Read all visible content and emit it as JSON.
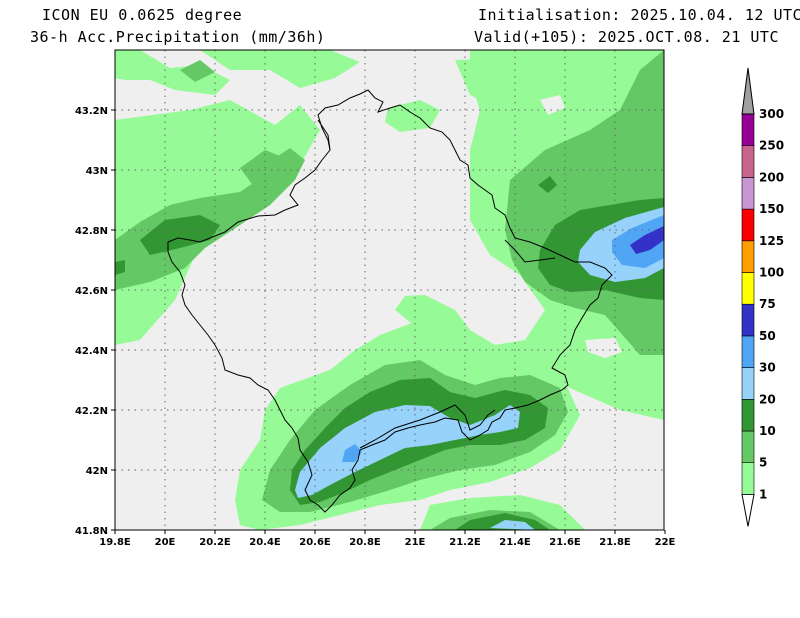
{
  "header": {
    "model": "ICON EU 0.0625 degree",
    "field": "36-h Acc.Precipitation (mm/36h)",
    "init": "Initialisation: 2025.10.04. 12 UTC",
    "valid": "Valid(+105): 2025.OCT.08. 21 UTC"
  },
  "axes": {
    "lon_labels": [
      "19.8E",
      "20E",
      "20.2E",
      "20.4E",
      "20.6E",
      "20.8E",
      "21E",
      "21.2E",
      "21.4E",
      "21.6E",
      "21.8E",
      "22E"
    ],
    "lat_labels": [
      "43.2N",
      "43N",
      "42.8N",
      "42.6N",
      "42.4N",
      "42.2N",
      "42N",
      "41.8N"
    ]
  },
  "colorbar": {
    "levels": [
      {
        "label": "1",
        "color": "#96fa96"
      },
      {
        "label": "5",
        "color": "#64c864"
      },
      {
        "label": "10",
        "color": "#329632"
      },
      {
        "label": "20",
        "color": "#96d2fa"
      },
      {
        "label": "30",
        "color": "#50a5f5"
      },
      {
        "label": "50",
        "color": "#3232c8"
      },
      {
        "label": "75",
        "color": "#ffff00"
      },
      {
        "label": "100",
        "color": "#ffa000"
      },
      {
        "label": "125",
        "color": "#fa0000"
      },
      {
        "label": "150",
        "color": "#c896d2"
      },
      {
        "label": "200",
        "color": "#c8648c"
      },
      {
        "label": "250",
        "color": "#960096"
      },
      {
        "label": "300",
        "color": "#a0a0a0"
      }
    ]
  }
}
